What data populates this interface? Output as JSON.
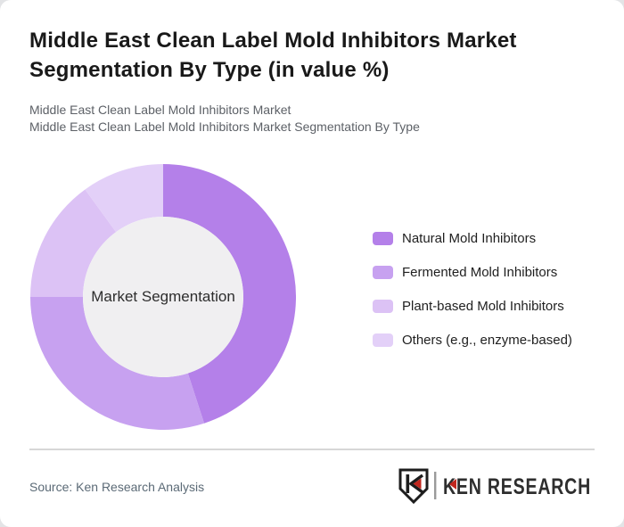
{
  "header": {
    "title": "Middle East Clean Label Mold Inhibitors Market Segmentation By Type (in value %)",
    "subtitle_line1": "Middle East Clean Label Mold Inhibitors Market",
    "subtitle_line2": "Middle East Clean Label Mold Inhibitors Market Segmentation By Type"
  },
  "chart_data": {
    "type": "pie",
    "variant": "donut",
    "title": "Middle East Clean Label Mold Inhibitors Market Segmentation By Type (in value %)",
    "unit": "value %",
    "center_label": "Market Segmentation",
    "center_fill": "#f0eff1",
    "start_angle_deg_from_top": 0,
    "direction": "clockwise",
    "legend_position": "right",
    "segments": [
      {
        "label": "Natural Mold Inhibitors",
        "value": 45,
        "color": "#b480e9"
      },
      {
        "label": "Fermented Mold Inhibitors",
        "value": 30,
        "color": "#c7a1f0"
      },
      {
        "label": "Plant-based Mold Inhibitors",
        "value": 15,
        "color": "#dcc2f5"
      },
      {
        "label": "Others (e.g., enzyme-based)",
        "value": 10,
        "color": "#e3d0f8"
      }
    ]
  },
  "footer": {
    "source_label": "Source: Ken Research Analysis",
    "logo": {
      "text": "KEN RESEARCH",
      "accent_color": "#c1271e",
      "ink_color": "#1d1d1d"
    }
  }
}
